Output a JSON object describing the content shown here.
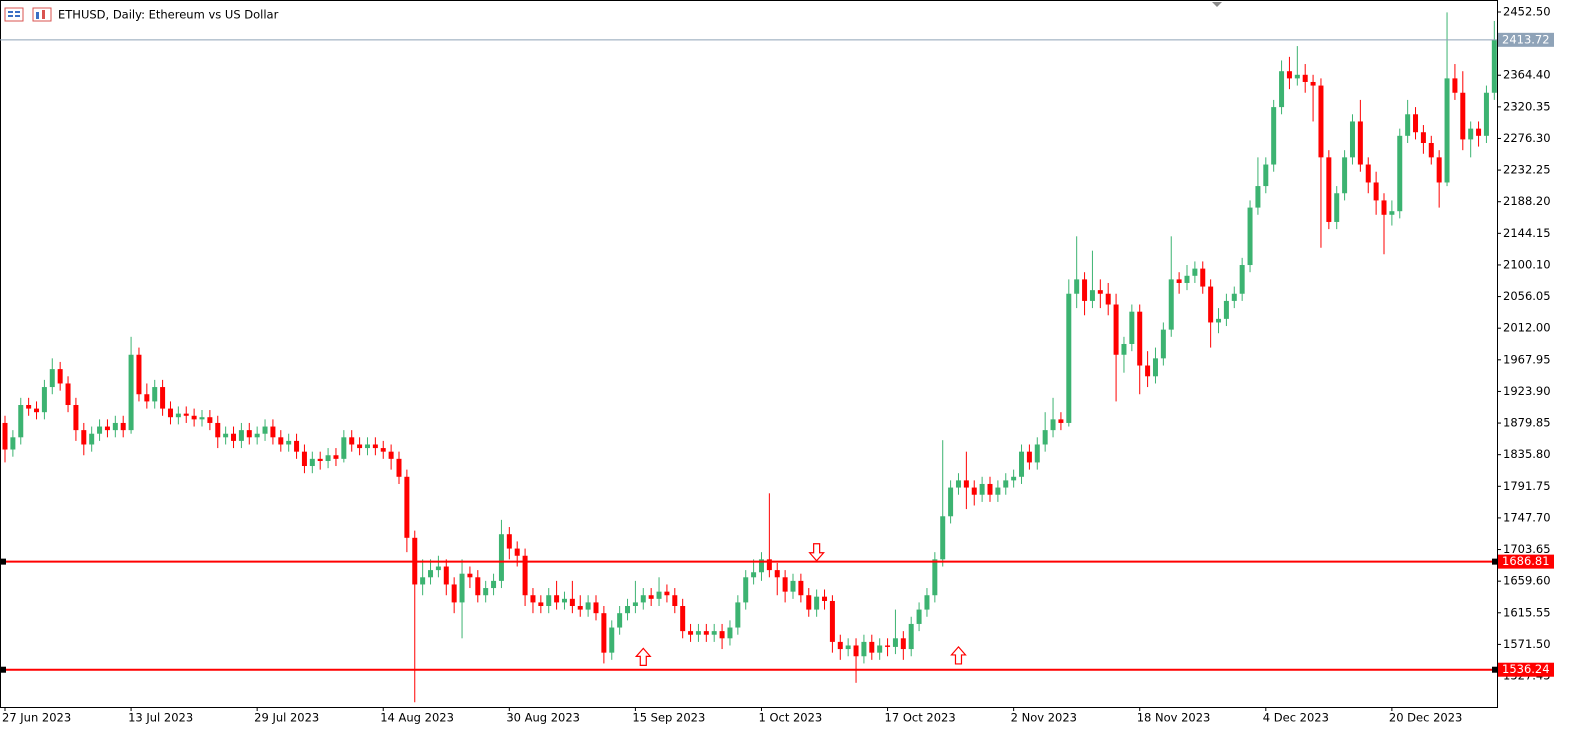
{
  "chart_data": {
    "type": "candlestick",
    "title": "ETHUSD, Daily:  Ethereum vs US Dollar",
    "up_color": "#3cb371",
    "down_color": "#ff0000",
    "ylim": [
      1484.3,
      2469.2
    ],
    "yticks": [
      {
        "value": 2452.5,
        "label": "2452.50"
      },
      {
        "value": 2364.4,
        "label": "2364.40"
      },
      {
        "value": 2320.35,
        "label": "2320.35"
      },
      {
        "value": 2276.3,
        "label": "2276.30"
      },
      {
        "value": 2232.25,
        "label": "2232.25"
      },
      {
        "value": 2188.2,
        "label": "2188.20"
      },
      {
        "value": 2144.15,
        "label": "2144.15"
      },
      {
        "value": 2100.1,
        "label": "2100.10"
      },
      {
        "value": 2056.05,
        "label": "2056.05"
      },
      {
        "value": 2012,
        "label": "2012.00"
      },
      {
        "value": 1967.95,
        "label": "1967.95"
      },
      {
        "value": 1923.9,
        "label": "1923.90"
      },
      {
        "value": 1879.85,
        "label": "1879.85"
      },
      {
        "value": 1835.8,
        "label": "1835.80"
      },
      {
        "value": 1791.75,
        "label": "1791.75"
      },
      {
        "value": 1747.7,
        "label": "1747.70"
      },
      {
        "value": 1703.65,
        "label": "1703.65"
      },
      {
        "value": 1659.6,
        "label": "1659.60"
      },
      {
        "value": 1615.55,
        "label": "1615.55"
      },
      {
        "value": 1571.5,
        "label": "1571.50"
      },
      {
        "value": 1527.45,
        "label": "1527.45"
      }
    ],
    "levels": [
      {
        "value": 2413.72,
        "color": "#8fa3b8"
      },
      {
        "value": 1686.81,
        "color": "#ff0000"
      },
      {
        "value": 1536.24,
        "color": "#ff0000"
      }
    ],
    "signals": [
      {
        "direction": "down",
        "index": 103,
        "price": 1688
      },
      {
        "direction": "up",
        "index": 81,
        "price": 1566
      },
      {
        "direction": "up",
        "index": 121,
        "price": 1568
      }
    ],
    "categories": [
      "27 Jun 2023",
      null,
      null,
      null,
      null,
      null,
      null,
      null,
      null,
      null,
      null,
      null,
      null,
      null,
      null,
      null,
      "13 Jul 2023",
      null,
      null,
      null,
      null,
      null,
      null,
      null,
      null,
      null,
      null,
      null,
      null,
      null,
      null,
      null,
      "29 Jul 2023",
      null,
      null,
      null,
      null,
      null,
      null,
      null,
      null,
      null,
      null,
      null,
      null,
      null,
      null,
      null,
      "14 Aug 2023",
      null,
      null,
      null,
      null,
      null,
      null,
      null,
      null,
      null,
      null,
      null,
      null,
      null,
      null,
      null,
      "30 Aug 2023",
      null,
      null,
      null,
      null,
      null,
      null,
      null,
      null,
      null,
      null,
      null,
      null,
      null,
      null,
      null,
      "15 Sep 2023",
      null,
      null,
      null,
      null,
      null,
      null,
      null,
      null,
      null,
      null,
      null,
      null,
      null,
      null,
      null,
      "1 Oct 2023",
      null,
      null,
      null,
      null,
      null,
      null,
      null,
      null,
      null,
      null,
      null,
      null,
      null,
      null,
      null,
      "17 Oct 2023",
      null,
      null,
      null,
      null,
      null,
      null,
      null,
      null,
      null,
      null,
      null,
      null,
      null,
      null,
      null,
      "2 Nov 2023",
      null,
      null,
      null,
      null,
      null,
      null,
      null,
      null,
      null,
      null,
      null,
      null,
      null,
      null,
      null,
      "18 Nov 2023",
      null,
      null,
      null,
      null,
      null,
      null,
      null,
      null,
      null,
      null,
      null,
      null,
      null,
      null,
      null,
      "4 Dec 2023",
      null,
      null,
      null,
      null,
      null,
      null,
      null,
      null,
      null,
      null,
      null,
      null,
      null,
      null,
      null,
      "20 Dec 2023",
      null,
      null,
      null,
      null,
      null,
      null,
      null,
      null,
      null,
      null,
      null,
      null,
      null
    ],
    "open": [
      1880,
      1843,
      1860,
      1905,
      1900,
      1895,
      1930,
      1955,
      1935,
      1905,
      1870,
      1850,
      1865,
      1875,
      1870,
      1880,
      1870,
      1975,
      1920,
      1910,
      1930,
      1900,
      1888,
      1893,
      1890,
      1885,
      1888,
      1880,
      1860,
      1865,
      1855,
      1870,
      1860,
      1865,
      1875,
      1860,
      1850,
      1855,
      1840,
      1820,
      1830,
      1827,
      1835,
      1830,
      1860,
      1850,
      1845,
      1850,
      1845,
      1840,
      1830,
      1805,
      1720,
      1655,
      1665,
      1675,
      1680,
      1655,
      1630,
      1670,
      1665,
      1640,
      1650,
      1660,
      1725,
      1705,
      1695,
      1640,
      1630,
      1625,
      1640,
      1630,
      1635,
      1625,
      1620,
      1630,
      1615,
      1560,
      1595,
      1615,
      1625,
      1630,
      1640,
      1635,
      1645,
      1640,
      1625,
      1590,
      1585,
      1590,
      1585,
      1590,
      1580,
      1595,
      1630,
      1665,
      1672,
      1690,
      1675,
      1665,
      1645,
      1660,
      1640,
      1620,
      1638,
      1632,
      1575,
      1565,
      1570,
      1555,
      1575,
      1560,
      1570,
      1568,
      1580,
      1565,
      1600,
      1620,
      1640,
      1690,
      1750,
      1790,
      1800,
      1790,
      1780,
      1795,
      1780,
      1790,
      1800,
      1805,
      1840,
      1825,
      1850,
      1870,
      1885,
      1880,
      2060,
      2080,
      2050,
      2065,
      2060,
      2045,
      1975,
      1990,
      2035,
      1960,
      1945,
      1970,
      2010,
      2080,
      2075,
      2085,
      2095,
      2070,
      2020,
      2025,
      2050,
      2060,
      2100,
      2180,
      2210,
      2240,
      2320,
      2370,
      2360,
      2365,
      2355,
      2350,
      2250,
      2160,
      2200,
      2250,
      2300,
      2240,
      2215,
      2190,
      2170,
      2175,
      2280,
      2310,
      2285,
      2270,
      2250,
      2215,
      2360,
      2340,
      2275,
      2290,
      2280,
      2340
    ],
    "high": [
      1890,
      1870,
      1915,
      1915,
      1910,
      1940,
      1970,
      1965,
      1945,
      1915,
      1880,
      1875,
      1885,
      1885,
      1890,
      1890,
      2000,
      1985,
      1935,
      1940,
      1940,
      1910,
      1903,
      1903,
      1900,
      1898,
      1898,
      1890,
      1875,
      1875,
      1880,
      1880,
      1875,
      1885,
      1885,
      1870,
      1865,
      1865,
      1850,
      1840,
      1840,
      1845,
      1845,
      1870,
      1870,
      1860,
      1860,
      1860,
      1855,
      1850,
      1840,
      1815,
      1730,
      1690,
      1690,
      1695,
      1690,
      1665,
      1690,
      1680,
      1675,
      1660,
      1670,
      1745,
      1735,
      1715,
      1705,
      1650,
      1640,
      1650,
      1660,
      1645,
      1660,
      1640,
      1640,
      1640,
      1625,
      1605,
      1625,
      1635,
      1660,
      1650,
      1650,
      1665,
      1655,
      1650,
      1635,
      1600,
      1600,
      1600,
      1600,
      1600,
      1605,
      1640,
      1675,
      1690,
      1700,
      1782,
      1685,
      1675,
      1670,
      1670,
      1650,
      1648,
      1648,
      1640,
      1585,
      1580,
      1580,
      1585,
      1585,
      1580,
      1580,
      1620,
      1590,
      1610,
      1630,
      1650,
      1700,
      1856,
      1800,
      1810,
      1840,
      1800,
      1805,
      1805,
      1800,
      1810,
      1815,
      1850,
      1850,
      1860,
      1895,
      1915,
      1895,
      2080,
      2140,
      2090,
      2120,
      2080,
      2075,
      2060,
      2000,
      2045,
      2045,
      1980,
      1985,
      2020,
      2140,
      2090,
      2100,
      2105,
      2105,
      2080,
      2040,
      2060,
      2070,
      2110,
      2190,
      2250,
      2250,
      2330,
      2385,
      2390,
      2405,
      2380,
      2365,
      2360,
      2260,
      2210,
      2260,
      2310,
      2330,
      2250,
      2230,
      2200,
      2190,
      2290,
      2330,
      2320,
      2295,
      2280,
      2260,
      2452,
      2380,
      2370,
      2300,
      2300,
      2350,
      2440
    ],
    "low": [
      1825,
      1833,
      1850,
      1890,
      1885,
      1885,
      1920,
      1925,
      1895,
      1855,
      1835,
      1840,
      1855,
      1860,
      1860,
      1860,
      1865,
      1910,
      1900,
      1900,
      1890,
      1878,
      1878,
      1880,
      1875,
      1875,
      1870,
      1845,
      1850,
      1845,
      1845,
      1850,
      1850,
      1855,
      1850,
      1840,
      1840,
      1830,
      1810,
      1810,
      1815,
      1817,
      1820,
      1825,
      1840,
      1835,
      1835,
      1835,
      1830,
      1815,
      1795,
      1700,
      1491,
      1640,
      1655,
      1665,
      1640,
      1615,
      1580,
      1650,
      1630,
      1630,
      1640,
      1650,
      1690,
      1680,
      1625,
      1615,
      1615,
      1615,
      1620,
      1620,
      1615,
      1610,
      1610,
      1605,
      1545,
      1550,
      1585,
      1605,
      1615,
      1620,
      1625,
      1625,
      1630,
      1615,
      1580,
      1575,
      1575,
      1575,
      1575,
      1565,
      1570,
      1585,
      1620,
      1655,
      1660,
      1665,
      1640,
      1630,
      1635,
      1630,
      1610,
      1610,
      1620,
      1560,
      1550,
      1555,
      1518,
      1545,
      1550,
      1550,
      1555,
      1558,
      1550,
      1555,
      1590,
      1610,
      1630,
      1680,
      1740,
      1780,
      1760,
      1765,
      1770,
      1770,
      1770,
      1780,
      1790,
      1795,
      1815,
      1815,
      1840,
      1860,
      1870,
      1875,
      2040,
      2030,
      2040,
      2040,
      2030,
      1910,
      1950,
      1980,
      1920,
      1930,
      1935,
      1960,
      2000,
      2060,
      2065,
      2075,
      2060,
      1985,
      2005,
      2015,
      2040,
      2050,
      2090,
      2170,
      2200,
      2230,
      2310,
      2345,
      2350,
      2340,
      2300,
      2124,
      2150,
      2150,
      2190,
      2240,
      2230,
      2200,
      2170,
      2115,
      2155,
      2165,
      2270,
      2275,
      2255,
      2240,
      2180,
      2210,
      2330,
      2260,
      2250,
      2265,
      2270,
      2330
    ],
    "close": [
      1843,
      1860,
      1905,
      1900,
      1895,
      1930,
      1955,
      1935,
      1905,
      1870,
      1850,
      1865,
      1875,
      1870,
      1880,
      1870,
      1975,
      1920,
      1910,
      1930,
      1900,
      1888,
      1893,
      1890,
      1885,
      1888,
      1880,
      1860,
      1865,
      1855,
      1870,
      1860,
      1865,
      1875,
      1860,
      1850,
      1855,
      1840,
      1820,
      1830,
      1827,
      1835,
      1830,
      1860,
      1850,
      1845,
      1850,
      1845,
      1840,
      1830,
      1805,
      1720,
      1655,
      1665,
      1675,
      1680,
      1655,
      1630,
      1670,
      1665,
      1640,
      1650,
      1660,
      1725,
      1705,
      1695,
      1640,
      1630,
      1625,
      1640,
      1630,
      1635,
      1625,
      1620,
      1630,
      1615,
      1560,
      1595,
      1615,
      1625,
      1630,
      1640,
      1635,
      1645,
      1640,
      1625,
      1590,
      1585,
      1590,
      1585,
      1590,
      1580,
      1595,
      1630,
      1665,
      1672,
      1690,
      1675,
      1665,
      1645,
      1660,
      1640,
      1620,
      1638,
      1632,
      1575,
      1565,
      1570,
      1555,
      1575,
      1560,
      1570,
      1568,
      1580,
      1565,
      1600,
      1620,
      1640,
      1690,
      1750,
      1790,
      1800,
      1790,
      1780,
      1795,
      1780,
      1790,
      1800,
      1805,
      1840,
      1825,
      1850,
      1870,
      1885,
      1880,
      2060,
      2080,
      2050,
      2065,
      2060,
      2045,
      1975,
      1990,
      2035,
      1960,
      1945,
      1970,
      2010,
      2080,
      2075,
      2085,
      2095,
      2070,
      2020,
      2025,
      2050,
      2060,
      2100,
      2180,
      2210,
      2240,
      2320,
      2370,
      2360,
      2365,
      2355,
      2350,
      2250,
      2160,
      2200,
      2250,
      2300,
      2240,
      2215,
      2190,
      2170,
      2175,
      2280,
      2310,
      2285,
      2270,
      2250,
      2215,
      2360,
      2340,
      2275,
      2290,
      2280,
      2340,
      2413.72
    ]
  }
}
